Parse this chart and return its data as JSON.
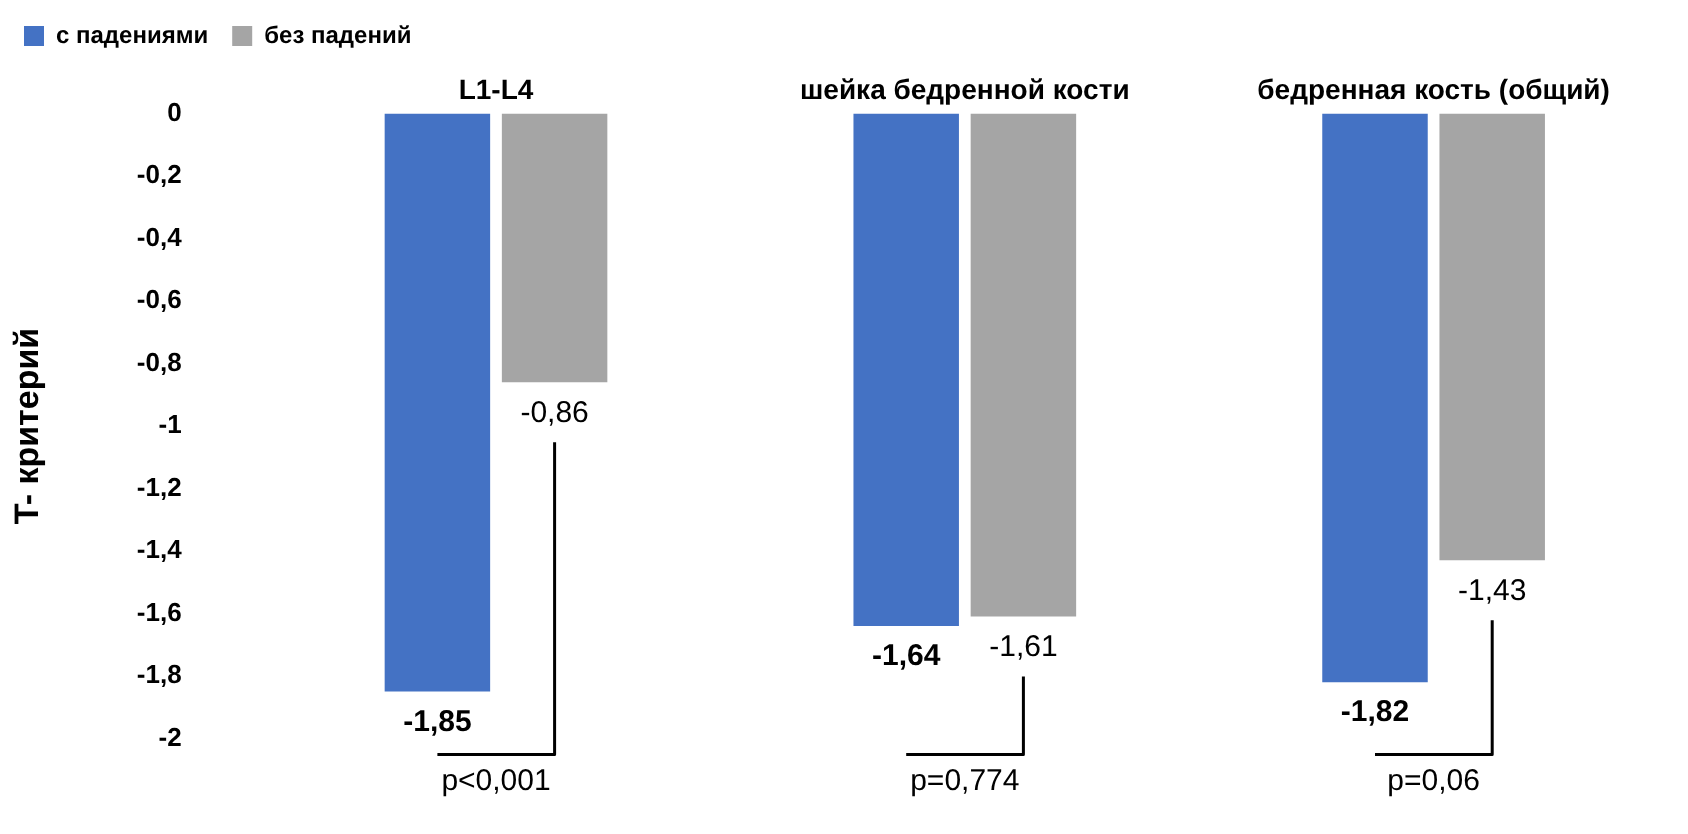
{
  "chart_data": {
    "type": "bar",
    "ylabel": "T- критерий",
    "categories": [
      "L1-L4",
      "шейка бедренной кости",
      "бедренная кость (общий)"
    ],
    "series": [
      {
        "name": "с падениями",
        "color": "#4472c4",
        "values": [
          -1.85,
          -1.64,
          -1.82
        ],
        "value_labels": [
          "-1,85",
          "-1,64",
          "-1,82"
        ]
      },
      {
        "name": "без падений",
        "color": "#a5a5a5",
        "values": [
          -0.86,
          -1.61,
          -1.43
        ],
        "value_labels": [
          "-0,86",
          "-1,61",
          "-1,43"
        ]
      }
    ],
    "ylim": [
      -2,
      0
    ],
    "yticks": [
      {
        "value": 0,
        "label": "0"
      },
      {
        "value": -0.2,
        "label": "-0,2"
      },
      {
        "value": -0.4,
        "label": "-0,4"
      },
      {
        "value": -0.6,
        "label": "-0,6"
      },
      {
        "value": -0.8,
        "label": "-0,8"
      },
      {
        "value": -1,
        "label": "-1"
      },
      {
        "value": -1.2,
        "label": "-1,2"
      },
      {
        "value": -1.4,
        "label": "-1,4"
      },
      {
        "value": -1.6,
        "label": "-1,6"
      },
      {
        "value": -1.8,
        "label": "-1,8"
      },
      {
        "value": -2,
        "label": "-2"
      }
    ],
    "grid": false,
    "legend": "top left",
    "annotations": [
      "p<0,001",
      "p=0,774",
      "p=0,06"
    ]
  }
}
